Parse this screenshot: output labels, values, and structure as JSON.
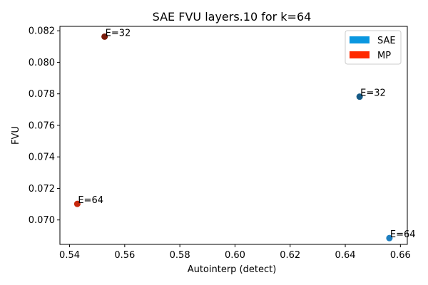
{
  "chart_data": {
    "type": "scatter",
    "title": "SAE FVU layers.10 for k=64",
    "xlabel": "Autointerp (detect)",
    "ylabel": "FVU",
    "xlim": [
      0.5365,
      0.6625
    ],
    "ylim": [
      0.06845,
      0.08228
    ],
    "xticks": [
      0.54,
      0.56,
      0.58,
      0.6,
      0.62,
      0.64,
      0.66
    ],
    "xtick_labels": [
      "0.54",
      "0.56",
      "0.58",
      "0.60",
      "0.62",
      "0.64",
      "0.66"
    ],
    "yticks": [
      0.07,
      0.072,
      0.074,
      0.076,
      0.078,
      0.08,
      0.082
    ],
    "ytick_labels": [
      "0.070",
      "0.072",
      "0.074",
      "0.076",
      "0.078",
      "0.080",
      "0.082"
    ],
    "grid": false,
    "legend": {
      "placement": "top-right",
      "entries": [
        {
          "label": "SAE",
          "color": "#0a97e0"
        },
        {
          "label": "MP",
          "color": "#ff2a00"
        }
      ]
    },
    "points": [
      {
        "x": 0.5527,
        "y": 0.08163,
        "label": "E=32",
        "color": "#7a1c0c"
      },
      {
        "x": 0.5428,
        "y": 0.07102,
        "label": "E=64",
        "color": "#c8280c"
      },
      {
        "x": 0.6452,
        "y": 0.07782,
        "label": "E=32",
        "color": "#155a86"
      },
      {
        "x": 0.656,
        "y": 0.06885,
        "label": "E=64",
        "color": "#1f7fc0"
      }
    ]
  }
}
